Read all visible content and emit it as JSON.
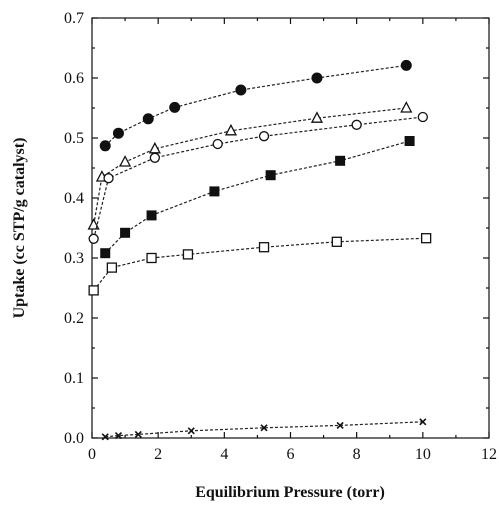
{
  "chart_data": {
    "type": "scatter",
    "title": "",
    "xlabel": "Equilibrium Pressure (torr)",
    "ylabel": "Uptake (cc STP/g catalyst)",
    "xlim": [
      0,
      12
    ],
    "ylim": [
      0,
      0.7
    ],
    "x_ticks": [
      "0",
      "2",
      "4",
      "6",
      "8",
      "10",
      "12"
    ],
    "y_ticks": [
      "0.0",
      "0.1",
      "0.2",
      "0.3",
      "0.4",
      "0.5",
      "0.6",
      "0.7"
    ],
    "grid": false,
    "legend": "none",
    "series": [
      {
        "marker": "filled-circle",
        "points": [
          [
            0.4,
            0.487
          ],
          [
            0.8,
            0.508
          ],
          [
            1.7,
            0.532
          ],
          [
            2.5,
            0.551
          ],
          [
            4.5,
            0.58
          ],
          [
            6.8,
            0.6
          ],
          [
            9.5,
            0.621
          ]
        ]
      },
      {
        "marker": "open-triangle",
        "points": [
          [
            0.05,
            0.355
          ],
          [
            0.3,
            0.435
          ],
          [
            1.0,
            0.46
          ],
          [
            1.9,
            0.482
          ],
          [
            4.2,
            0.512
          ],
          [
            6.8,
            0.533
          ],
          [
            9.5,
            0.55
          ]
        ]
      },
      {
        "marker": "open-circle",
        "points": [
          [
            0.05,
            0.332
          ],
          [
            0.5,
            0.433
          ],
          [
            1.9,
            0.467
          ],
          [
            3.8,
            0.49
          ],
          [
            5.2,
            0.503
          ],
          [
            8.0,
            0.522
          ],
          [
            10.0,
            0.535
          ]
        ]
      },
      {
        "marker": "filled-square",
        "points": [
          [
            0.4,
            0.308
          ],
          [
            1.0,
            0.342
          ],
          [
            1.8,
            0.371
          ],
          [
            3.7,
            0.411
          ],
          [
            5.4,
            0.438
          ],
          [
            7.5,
            0.462
          ],
          [
            9.6,
            0.495
          ]
        ]
      },
      {
        "marker": "open-square",
        "points": [
          [
            0.05,
            0.246
          ],
          [
            0.6,
            0.284
          ],
          [
            1.8,
            0.3
          ],
          [
            2.9,
            0.306
          ],
          [
            5.2,
            0.318
          ],
          [
            7.4,
            0.327
          ],
          [
            10.1,
            0.333
          ]
        ]
      },
      {
        "marker": "cross",
        "points": [
          [
            0.4,
            0.002
          ],
          [
            0.8,
            0.004
          ],
          [
            1.4,
            0.006
          ],
          [
            3.0,
            0.012
          ],
          [
            5.2,
            0.017
          ],
          [
            7.5,
            0.021
          ],
          [
            10.0,
            0.027
          ]
        ]
      }
    ]
  }
}
